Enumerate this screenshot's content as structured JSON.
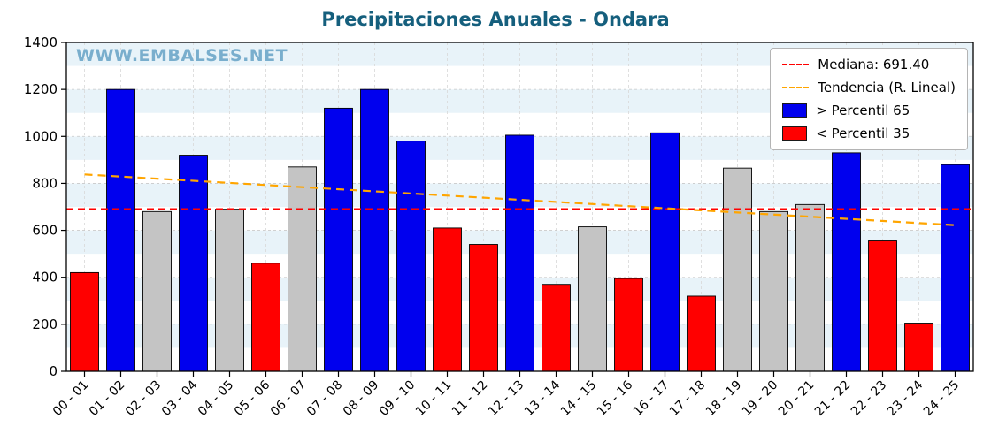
{
  "title": "Precipitaciones Anuales - Ondara",
  "watermark": "WWW.EMBALSES.NET",
  "colors": {
    "title": "#155f7d",
    "watermark": "#79aecd",
    "above65": "#0000ee",
    "below35": "#ff0000",
    "mid": "#c4c4c4",
    "median_line": "#ff0000",
    "trend_line": "#ffa500",
    "stripe": "#e8f3f9",
    "grid": "#c9c9c9",
    "axis": "#000000"
  },
  "legend": {
    "items": [
      {
        "label": "Mediana: 691.40",
        "swatch": "line",
        "color": "#ff0000"
      },
      {
        "label": "Tendencia (R. Lineal)",
        "swatch": "line",
        "color": "#ffa500"
      },
      {
        "label": "> Percentil 65",
        "swatch": "box",
        "color": "#0000ee"
      },
      {
        "label": "< Percentil 35",
        "swatch": "box",
        "color": "#ff0000"
      }
    ]
  },
  "chart_data": {
    "type": "bar",
    "title": "Precipitaciones Anuales - Ondara",
    "xlabel": "",
    "ylabel": "",
    "ylim": [
      0,
      1400
    ],
    "ytick_step": 200,
    "grid": true,
    "legend_position": "upper right",
    "categories": [
      "00 - 01",
      "01 - 02",
      "02 - 03",
      "03 - 04",
      "04 - 05",
      "05 - 06",
      "06 - 07",
      "07 - 08",
      "08 - 09",
      "09 - 10",
      "10 - 11",
      "11 - 12",
      "12 - 13",
      "13 - 14",
      "14 - 15",
      "15 - 16",
      "16 - 17",
      "17 - 18",
      "18 - 19",
      "19 - 20",
      "20 - 21",
      "21 - 22",
      "22 - 23",
      "23 - 24",
      "24 - 25"
    ],
    "values": [
      420,
      1200,
      680,
      920,
      690,
      460,
      870,
      1120,
      1200,
      980,
      610,
      540,
      1005,
      370,
      615,
      395,
      1015,
      320,
      865,
      680,
      710,
      930,
      555,
      205,
      880
    ],
    "classes": [
      "below35",
      "above65",
      "mid",
      "above65",
      "mid",
      "below35",
      "mid",
      "above65",
      "above65",
      "above65",
      "below35",
      "below35",
      "above65",
      "below35",
      "mid",
      "below35",
      "above65",
      "below35",
      "mid",
      "mid",
      "mid",
      "above65",
      "below35",
      "below35",
      "above65"
    ],
    "median": 691.4,
    "trend": {
      "start": 838,
      "end": 622
    }
  }
}
